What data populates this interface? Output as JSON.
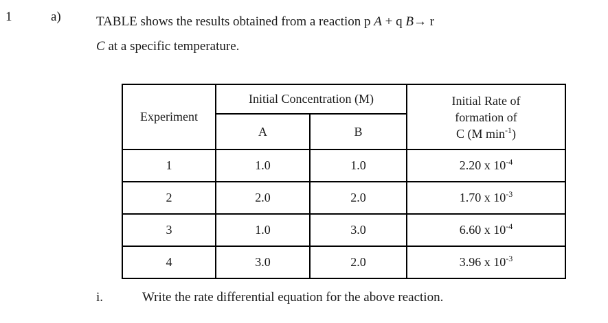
{
  "question": {
    "number": "1",
    "part_label": "a)"
  },
  "intro": {
    "seg1": "TABLE shows the results obtained from a reaction p ",
    "segA": "A",
    "seg2": " + q ",
    "segB": "B",
    "seg3": "→ r",
    "line2_c": "C",
    "line2_rest": " at a specific temperature."
  },
  "table": {
    "headers": {
      "experiment": "Experiment",
      "initial_concentration": "Initial Concentration (M)",
      "a": "A",
      "b": "B",
      "rate_line1": "Initial Rate of",
      "rate_line2": "formation of",
      "rate_line3_pre": "C (M min",
      "rate_line3_sup": "-1",
      "rate_line3_post": ")"
    },
    "rows": [
      {
        "experiment": "1",
        "conc_a": "1.0",
        "conc_b": "1.0",
        "rate_base": "2.20 x 10",
        "rate_exp": "-4"
      },
      {
        "experiment": "2",
        "conc_a": "2.0",
        "conc_b": "2.0",
        "rate_base": "1.70 x 10",
        "rate_exp": "-3"
      },
      {
        "experiment": "3",
        "conc_a": "1.0",
        "conc_b": "3.0",
        "rate_base": "6.60 x 10",
        "rate_exp": "-4"
      },
      {
        "experiment": "4",
        "conc_a": "3.0",
        "conc_b": "2.0",
        "rate_base": "3.96 x 10",
        "rate_exp": "-3"
      }
    ]
  },
  "subquestion": {
    "label": "i.",
    "text": "Write the rate differential equation for the above reaction."
  }
}
